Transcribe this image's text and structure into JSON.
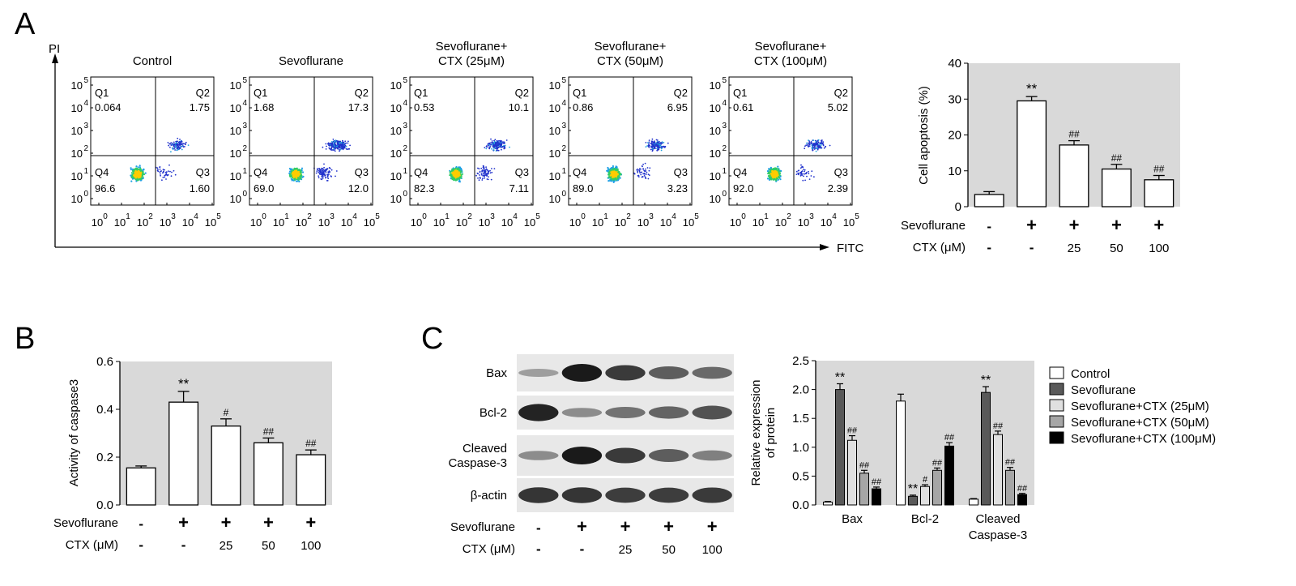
{
  "panels": {
    "a": "A",
    "b": "B",
    "c": "C"
  },
  "flow": {
    "y_axis_label": "PI",
    "x_axis_label": "FITC",
    "tick_labels": [
      "10",
      "1",
      "2",
      "3",
      "4",
      "5"
    ],
    "plots": [
      {
        "title": [
          "Control"
        ],
        "q1": "0.064",
        "q2": "1.75",
        "q3": "1.60",
        "q4": "96.6",
        "q1_label": "Q1",
        "q2_label": "Q2",
        "q3_label": "Q3",
        "q4_label": "Q4",
        "late_apoptosis": 0.0175,
        "early_apoptosis": 0.016
      },
      {
        "title": [
          "Sevoflurane"
        ],
        "q1": "1.68",
        "q2": "17.3",
        "q3": "12.0",
        "q4": "69.0",
        "q1_label": "Q1",
        "q2_label": "Q2",
        "q3_label": "Q3",
        "q4_label": "Q4",
        "late_apoptosis": 0.173,
        "early_apoptosis": 0.12
      },
      {
        "title": [
          "Sevoflurane+",
          "CTX (25μM)"
        ],
        "q1": "0.53",
        "q2": "10.1",
        "q3": "7.11",
        "q4": "82.3",
        "q1_label": "Q1",
        "q2_label": "Q2",
        "q3_label": "Q3",
        "q4_label": "Q4",
        "late_apoptosis": 0.101,
        "early_apoptosis": 0.0711
      },
      {
        "title": [
          "Sevoflurane+",
          "CTX (50μM)"
        ],
        "q1": "0.86",
        "q2": "6.95",
        "q3": "3.23",
        "q4": "89.0",
        "q1_label": "Q1",
        "q2_label": "Q2",
        "q3_label": "Q3",
        "q4_label": "Q4",
        "late_apoptosis": 0.0695,
        "early_apoptosis": 0.0323
      },
      {
        "title": [
          "Sevoflurane+",
          "CTX (100μM)"
        ],
        "q1": "0.61",
        "q2": "5.02",
        "q3": "2.39",
        "q4": "92.0",
        "q1_label": "Q1",
        "q2_label": "Q2",
        "q3_label": "Q3",
        "q4_label": "Q4",
        "late_apoptosis": 0.0502,
        "early_apoptosis": 0.0239
      }
    ]
  },
  "treatment": {
    "sevo_label": "Sevoflurane",
    "ctx_label": "CTX (μM)",
    "sevo": [
      "-",
      "+",
      "+",
      "+",
      "+"
    ],
    "ctx": [
      "-",
      "-",
      "25",
      "50",
      "100"
    ]
  },
  "blot": {
    "rows": [
      "Bax",
      "Bcl-2",
      "Cleaved\nCaspase-3",
      "β-actin"
    ],
    "intensity": [
      [
        0.25,
        1.0,
        0.82,
        0.62,
        0.55
      ],
      [
        0.95,
        0.35,
        0.5,
        0.58,
        0.68
      ],
      [
        0.35,
        1.0,
        0.82,
        0.62,
        0.42
      ],
      [
        0.85,
        0.85,
        0.8,
        0.8,
        0.82
      ]
    ]
  },
  "chart_data": [
    {
      "type": "bar",
      "ylabel": "Cell apoptosis (%)",
      "ylim": [
        0,
        40
      ],
      "yticks": [
        "0",
        "10",
        "20",
        "30",
        "40"
      ],
      "values": [
        3.4,
        29.5,
        17.2,
        10.5,
        7.5
      ],
      "errors": [
        0.8,
        1.2,
        1.2,
        1.3,
        1.2
      ],
      "annotations": [
        "",
        "**",
        "##",
        "##",
        "##"
      ],
      "grid": false,
      "background": "#d9d9d9"
    },
    {
      "type": "bar",
      "ylabel": "Activity of caspase3",
      "ylim": [
        0,
        0.6
      ],
      "yticks": [
        "0.0",
        "0.2",
        "0.4",
        "0.6"
      ],
      "values": [
        0.155,
        0.43,
        0.33,
        0.26,
        0.21
      ],
      "errors": [
        0.008,
        0.045,
        0.03,
        0.02,
        0.02
      ],
      "annotations": [
        "",
        "**",
        "#",
        "##",
        "##"
      ],
      "grid": false,
      "background": "#d9d9d9"
    },
    {
      "type": "bar",
      "ylabel": [
        "Relative expression",
        "of protein"
      ],
      "ylim": [
        0,
        2.5
      ],
      "yticks": [
        "0.0",
        "0.5",
        "1.0",
        "1.5",
        "2.0",
        "2.5"
      ],
      "categories": [
        "Bax",
        "Bcl-2",
        "Cleaved\nCaspase-3"
      ],
      "series": [
        {
          "name": "Control",
          "color": "#ffffff",
          "values": [
            0.05,
            1.8,
            0.1
          ],
          "errors": [
            0.01,
            0.12,
            0.01
          ],
          "annotations": [
            "",
            "",
            ""
          ]
        },
        {
          "name": "Sevoflurane",
          "color": "#595959",
          "values": [
            2.0,
            0.15,
            1.95
          ],
          "errors": [
            0.1,
            0.02,
            0.1
          ],
          "annotations": [
            "**",
            "**",
            "**"
          ]
        },
        {
          "name": "Sevoflurane+CTX (25μM)",
          "color": "#e0e0e0",
          "values": [
            1.12,
            0.32,
            1.22
          ],
          "errors": [
            0.08,
            0.03,
            0.06
          ],
          "annotations": [
            "##",
            "#",
            "##"
          ]
        },
        {
          "name": "Sevoflurane+CTX (50μM)",
          "color": "#a6a6a6",
          "values": [
            0.55,
            0.6,
            0.6
          ],
          "errors": [
            0.05,
            0.04,
            0.05
          ],
          "annotations": [
            "##",
            "##",
            "##"
          ]
        },
        {
          "name": "Sevoflurane+CTX (100μM)",
          "color": "#000000",
          "values": [
            0.28,
            1.02,
            0.18
          ],
          "errors": [
            0.03,
            0.06,
            0.02
          ],
          "annotations": [
            "##",
            "##",
            "##"
          ]
        }
      ],
      "grid": false,
      "legend": "right",
      "background": "#d9d9d9"
    }
  ]
}
